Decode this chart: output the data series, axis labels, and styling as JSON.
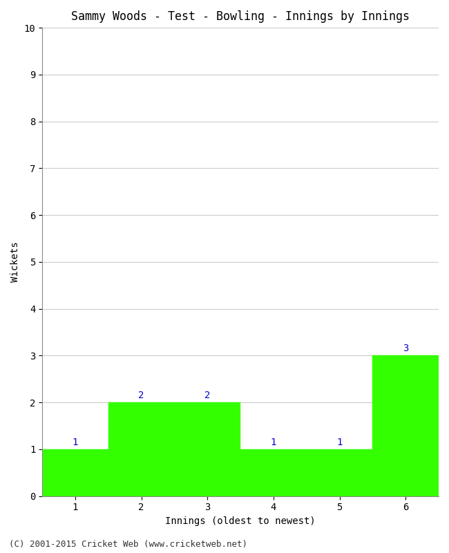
{
  "title": "Sammy Woods - Test - Bowling - Innings by Innings",
  "xlabel": "Innings (oldest to newest)",
  "ylabel": "Wickets",
  "categories": [
    "1",
    "2",
    "3",
    "4",
    "5",
    "6"
  ],
  "values": [
    1,
    2,
    2,
    1,
    1,
    3
  ],
  "bar_color": "#33ff00",
  "bar_edge_color": "#33ff00",
  "label_color": "#0000cc",
  "ylim": [
    0,
    10
  ],
  "yticks": [
    0,
    1,
    2,
    3,
    4,
    5,
    6,
    7,
    8,
    9,
    10
  ],
  "background_color": "#ffffff",
  "grid_color": "#cccccc",
  "footer": "(C) 2001-2015 Cricket Web (www.cricketweb.net)",
  "title_fontsize": 12,
  "axis_label_fontsize": 10,
  "tick_fontsize": 10,
  "label_fontsize": 10,
  "footer_fontsize": 9
}
